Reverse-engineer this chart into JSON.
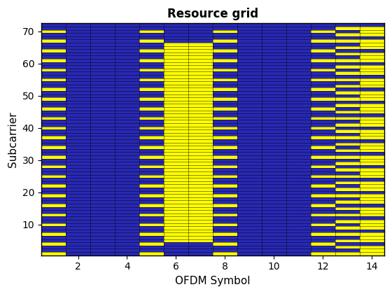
{
  "title": "Resource grid",
  "xlabel": "OFDM Symbol",
  "ylabel": "Subcarrier",
  "n_subcarriers": 72,
  "n_symbols": 14,
  "blue_color": "#2828B4",
  "yellow_color": "#FFFF00",
  "background": "#ffffff",
  "xlim": [
    0.5,
    14.5
  ],
  "ylim": [
    0.5,
    72.5
  ],
  "xticks": [
    2,
    4,
    6,
    8,
    10,
    12,
    14
  ],
  "yticks": [
    10,
    20,
    30,
    40,
    50,
    60,
    70
  ],
  "figsize": [
    5.6,
    4.2
  ],
  "dpi": 100
}
